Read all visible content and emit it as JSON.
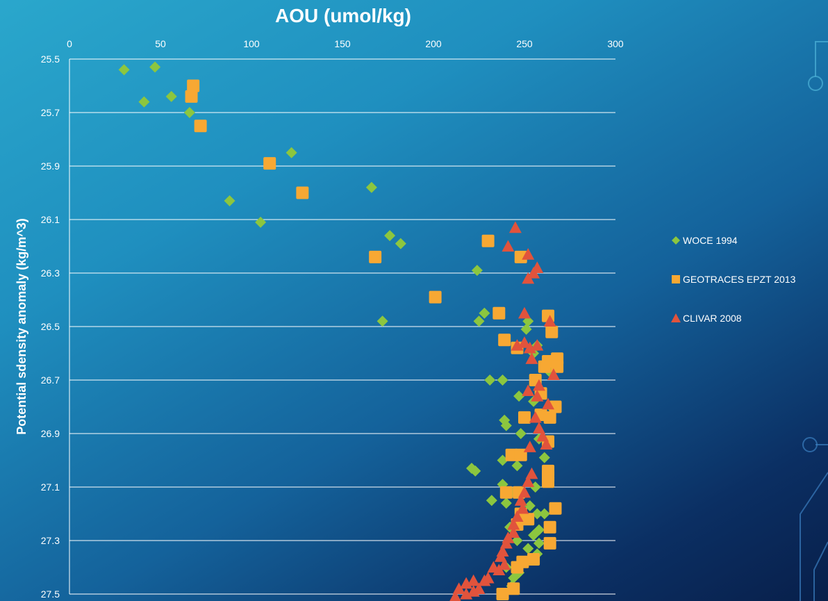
{
  "chart_data": {
    "type": "scatter",
    "title": "AOU (umol/kg)",
    "xlabel": "",
    "ylabel": "Potential sdensity anomaly (kg/m^3)",
    "xlim": [
      0,
      300
    ],
    "ylim": [
      25.5,
      27.5
    ],
    "y_inverted": true,
    "x_axis_position": "top",
    "x_ticks": [
      "0",
      "50",
      "100",
      "150",
      "200",
      "250",
      "300"
    ],
    "y_ticks": [
      "25.5",
      "25.7",
      "25.9",
      "26.1",
      "26.3",
      "26.5",
      "26.7",
      "26.9",
      "27.1",
      "27.3",
      "27.5"
    ],
    "grid": "horizontal",
    "legend_position": "right",
    "series": [
      {
        "name": "WOCE 1994",
        "marker": "diamond",
        "color": "#8cc63f",
        "points": [
          [
            30,
            25.54
          ],
          [
            47,
            25.53
          ],
          [
            41,
            25.66
          ],
          [
            56,
            25.64
          ],
          [
            66,
            25.7
          ],
          [
            122,
            25.85
          ],
          [
            88,
            26.03
          ],
          [
            105,
            26.11
          ],
          [
            166,
            25.98
          ],
          [
            176,
            26.16
          ],
          [
            182,
            26.19
          ],
          [
            224,
            26.29
          ],
          [
            172,
            26.48
          ],
          [
            228,
            26.45
          ],
          [
            225,
            26.48
          ],
          [
            252,
            26.48
          ],
          [
            251,
            26.51
          ],
          [
            257,
            26.57
          ],
          [
            255,
            26.6
          ],
          [
            231,
            26.7
          ],
          [
            238,
            26.7
          ],
          [
            264,
            26.67
          ],
          [
            247,
            26.76
          ],
          [
            255,
            26.78
          ],
          [
            266,
            26.81
          ],
          [
            239,
            26.85
          ],
          [
            240,
            26.87
          ],
          [
            248,
            26.9
          ],
          [
            258,
            26.92
          ],
          [
            261,
            26.99
          ],
          [
            238,
            27.0
          ],
          [
            246,
            27.02
          ],
          [
            221,
            27.03
          ],
          [
            223,
            27.04
          ],
          [
            238,
            27.09
          ],
          [
            243,
            27.12
          ],
          [
            256,
            27.1
          ],
          [
            232,
            27.15
          ],
          [
            240,
            27.16
          ],
          [
            253,
            27.17
          ],
          [
            257,
            27.2
          ],
          [
            261,
            27.2
          ],
          [
            249,
            27.22
          ],
          [
            242,
            27.25
          ],
          [
            258,
            27.26
          ],
          [
            255,
            27.28
          ],
          [
            246,
            27.3
          ],
          [
            258,
            27.31
          ],
          [
            252,
            27.33
          ],
          [
            257,
            27.35
          ],
          [
            251,
            27.38
          ],
          [
            240,
            27.4
          ],
          [
            247,
            27.42
          ],
          [
            244,
            27.44
          ],
          [
            243,
            27.47
          ]
        ]
      },
      {
        "name": "GEOTRACES EPZT 2013",
        "marker": "square",
        "color": "#f7a833",
        "points": [
          [
            68,
            25.6
          ],
          [
            67,
            25.64
          ],
          [
            72,
            25.75
          ],
          [
            110,
            25.89
          ],
          [
            128,
            26.0
          ],
          [
            168,
            26.24
          ],
          [
            230,
            26.18
          ],
          [
            248,
            26.24
          ],
          [
            201,
            26.39
          ],
          [
            236,
            26.45
          ],
          [
            263,
            26.46
          ],
          [
            265,
            26.52
          ],
          [
            239,
            26.55
          ],
          [
            246,
            26.58
          ],
          [
            263,
            26.63
          ],
          [
            268,
            26.62
          ],
          [
            268,
            26.65
          ],
          [
            261,
            26.65
          ],
          [
            256,
            26.7
          ],
          [
            259,
            26.75
          ],
          [
            267,
            26.8
          ],
          [
            259,
            26.83
          ],
          [
            264,
            26.84
          ],
          [
            250,
            26.84
          ],
          [
            263,
            26.93
          ],
          [
            243,
            26.98
          ],
          [
            248,
            26.98
          ],
          [
            263,
            27.04
          ],
          [
            263,
            27.06
          ],
          [
            263,
            27.08
          ],
          [
            240,
            27.12
          ],
          [
            247,
            27.12
          ],
          [
            267,
            27.18
          ],
          [
            248,
            27.2
          ],
          [
            252,
            27.22
          ],
          [
            246,
            27.24
          ],
          [
            264,
            27.25
          ],
          [
            264,
            27.31
          ],
          [
            255,
            27.37
          ],
          [
            249,
            27.38
          ],
          [
            246,
            27.4
          ],
          [
            244,
            27.48
          ],
          [
            238,
            27.5
          ]
        ]
      },
      {
        "name": "CLIVAR 2008",
        "marker": "triangle",
        "color": "#e1533c",
        "points": [
          [
            245,
            26.13
          ],
          [
            241,
            26.2
          ],
          [
            252,
            26.23
          ],
          [
            257,
            26.28
          ],
          [
            255,
            26.3
          ],
          [
            252,
            26.32
          ],
          [
            250,
            26.45
          ],
          [
            264,
            26.48
          ],
          [
            246,
            26.57
          ],
          [
            250,
            26.56
          ],
          [
            253,
            26.58
          ],
          [
            257,
            26.57
          ],
          [
            254,
            26.62
          ],
          [
            266,
            26.68
          ],
          [
            258,
            26.72
          ],
          [
            252,
            26.74
          ],
          [
            257,
            26.76
          ],
          [
            263,
            26.79
          ],
          [
            256,
            26.84
          ],
          [
            258,
            26.88
          ],
          [
            260,
            26.91
          ],
          [
            262,
            26.94
          ],
          [
            253,
            26.95
          ],
          [
            254,
            27.05
          ],
          [
            252,
            27.08
          ],
          [
            250,
            27.12
          ],
          [
            248,
            27.15
          ],
          [
            249,
            27.18
          ],
          [
            246,
            27.21
          ],
          [
            244,
            27.24
          ],
          [
            244,
            27.27
          ],
          [
            241,
            27.29
          ],
          [
            240,
            27.31
          ],
          [
            238,
            27.34
          ],
          [
            237,
            27.36
          ],
          [
            239,
            27.39
          ],
          [
            236,
            27.41
          ],
          [
            233,
            27.4
          ],
          [
            230,
            27.44
          ],
          [
            228,
            27.45
          ],
          [
            222,
            27.45
          ],
          [
            218,
            27.46
          ],
          [
            225,
            27.48
          ],
          [
            222,
            27.49
          ],
          [
            214,
            27.48
          ],
          [
            218,
            27.5
          ],
          [
            212,
            27.51
          ]
        ]
      }
    ]
  }
}
